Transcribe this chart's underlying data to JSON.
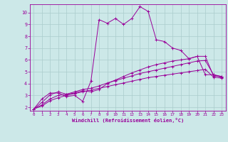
{
  "bg_color": "#cce8e8",
  "line_color": "#990099",
  "grid_color": "#aacccc",
  "xlabel": "Windchill (Refroidissement éolien,°C)",
  "xlabel_color": "#990099",
  "tick_color": "#990099",
  "xlim": [
    -0.5,
    23.5
  ],
  "ylim": [
    1.7,
    10.7
  ],
  "yticks": [
    2,
    3,
    4,
    5,
    6,
    7,
    8,
    9,
    10
  ],
  "xticks": [
    0,
    1,
    2,
    3,
    4,
    5,
    6,
    7,
    8,
    9,
    10,
    11,
    12,
    13,
    14,
    15,
    16,
    17,
    18,
    19,
    20,
    21,
    22,
    23
  ],
  "line1_x": [
    0,
    1,
    2,
    3,
    4,
    5,
    6,
    7,
    8,
    9,
    10,
    11,
    12,
    13,
    14,
    15,
    16,
    17,
    18,
    19,
    20,
    21,
    22,
    23
  ],
  "line1_y": [
    1.85,
    2.7,
    3.2,
    3.2,
    2.9,
    3.0,
    2.5,
    4.2,
    9.4,
    9.1,
    9.5,
    9.0,
    9.5,
    10.5,
    10.1,
    7.7,
    7.55,
    7.0,
    6.8,
    6.1,
    6.3,
    4.75,
    4.75,
    4.6
  ],
  "line2_x": [
    0,
    1,
    2,
    3,
    4,
    5,
    6,
    7,
    8,
    9,
    10,
    11,
    12,
    13,
    14,
    15,
    16,
    17,
    18,
    19,
    20,
    21,
    22,
    23
  ],
  "line2_y": [
    1.85,
    2.4,
    3.05,
    3.3,
    3.1,
    3.2,
    3.4,
    3.3,
    3.5,
    4.0,
    4.3,
    4.6,
    4.9,
    5.15,
    5.4,
    5.6,
    5.75,
    5.9,
    6.0,
    6.1,
    6.3,
    6.3,
    4.65,
    4.6
  ],
  "line3_x": [
    0,
    1,
    2,
    3,
    4,
    5,
    6,
    7,
    8,
    9,
    10,
    11,
    12,
    13,
    14,
    15,
    16,
    17,
    18,
    19,
    20,
    21,
    22,
    23
  ],
  "line3_y": [
    1.85,
    2.2,
    2.7,
    3.0,
    3.1,
    3.3,
    3.5,
    3.6,
    3.8,
    4.05,
    4.25,
    4.45,
    4.65,
    4.85,
    5.0,
    5.15,
    5.3,
    5.45,
    5.6,
    5.75,
    5.9,
    5.95,
    4.75,
    4.5
  ],
  "line4_x": [
    0,
    1,
    2,
    3,
    4,
    5,
    6,
    7,
    8,
    9,
    10,
    11,
    12,
    13,
    14,
    15,
    16,
    17,
    18,
    19,
    20,
    21,
    22,
    23
  ],
  "line4_y": [
    1.85,
    2.1,
    2.55,
    2.8,
    3.0,
    3.15,
    3.3,
    3.45,
    3.6,
    3.75,
    3.9,
    4.05,
    4.2,
    4.35,
    4.5,
    4.6,
    4.7,
    4.8,
    4.9,
    5.0,
    5.1,
    5.2,
    4.55,
    4.45
  ]
}
